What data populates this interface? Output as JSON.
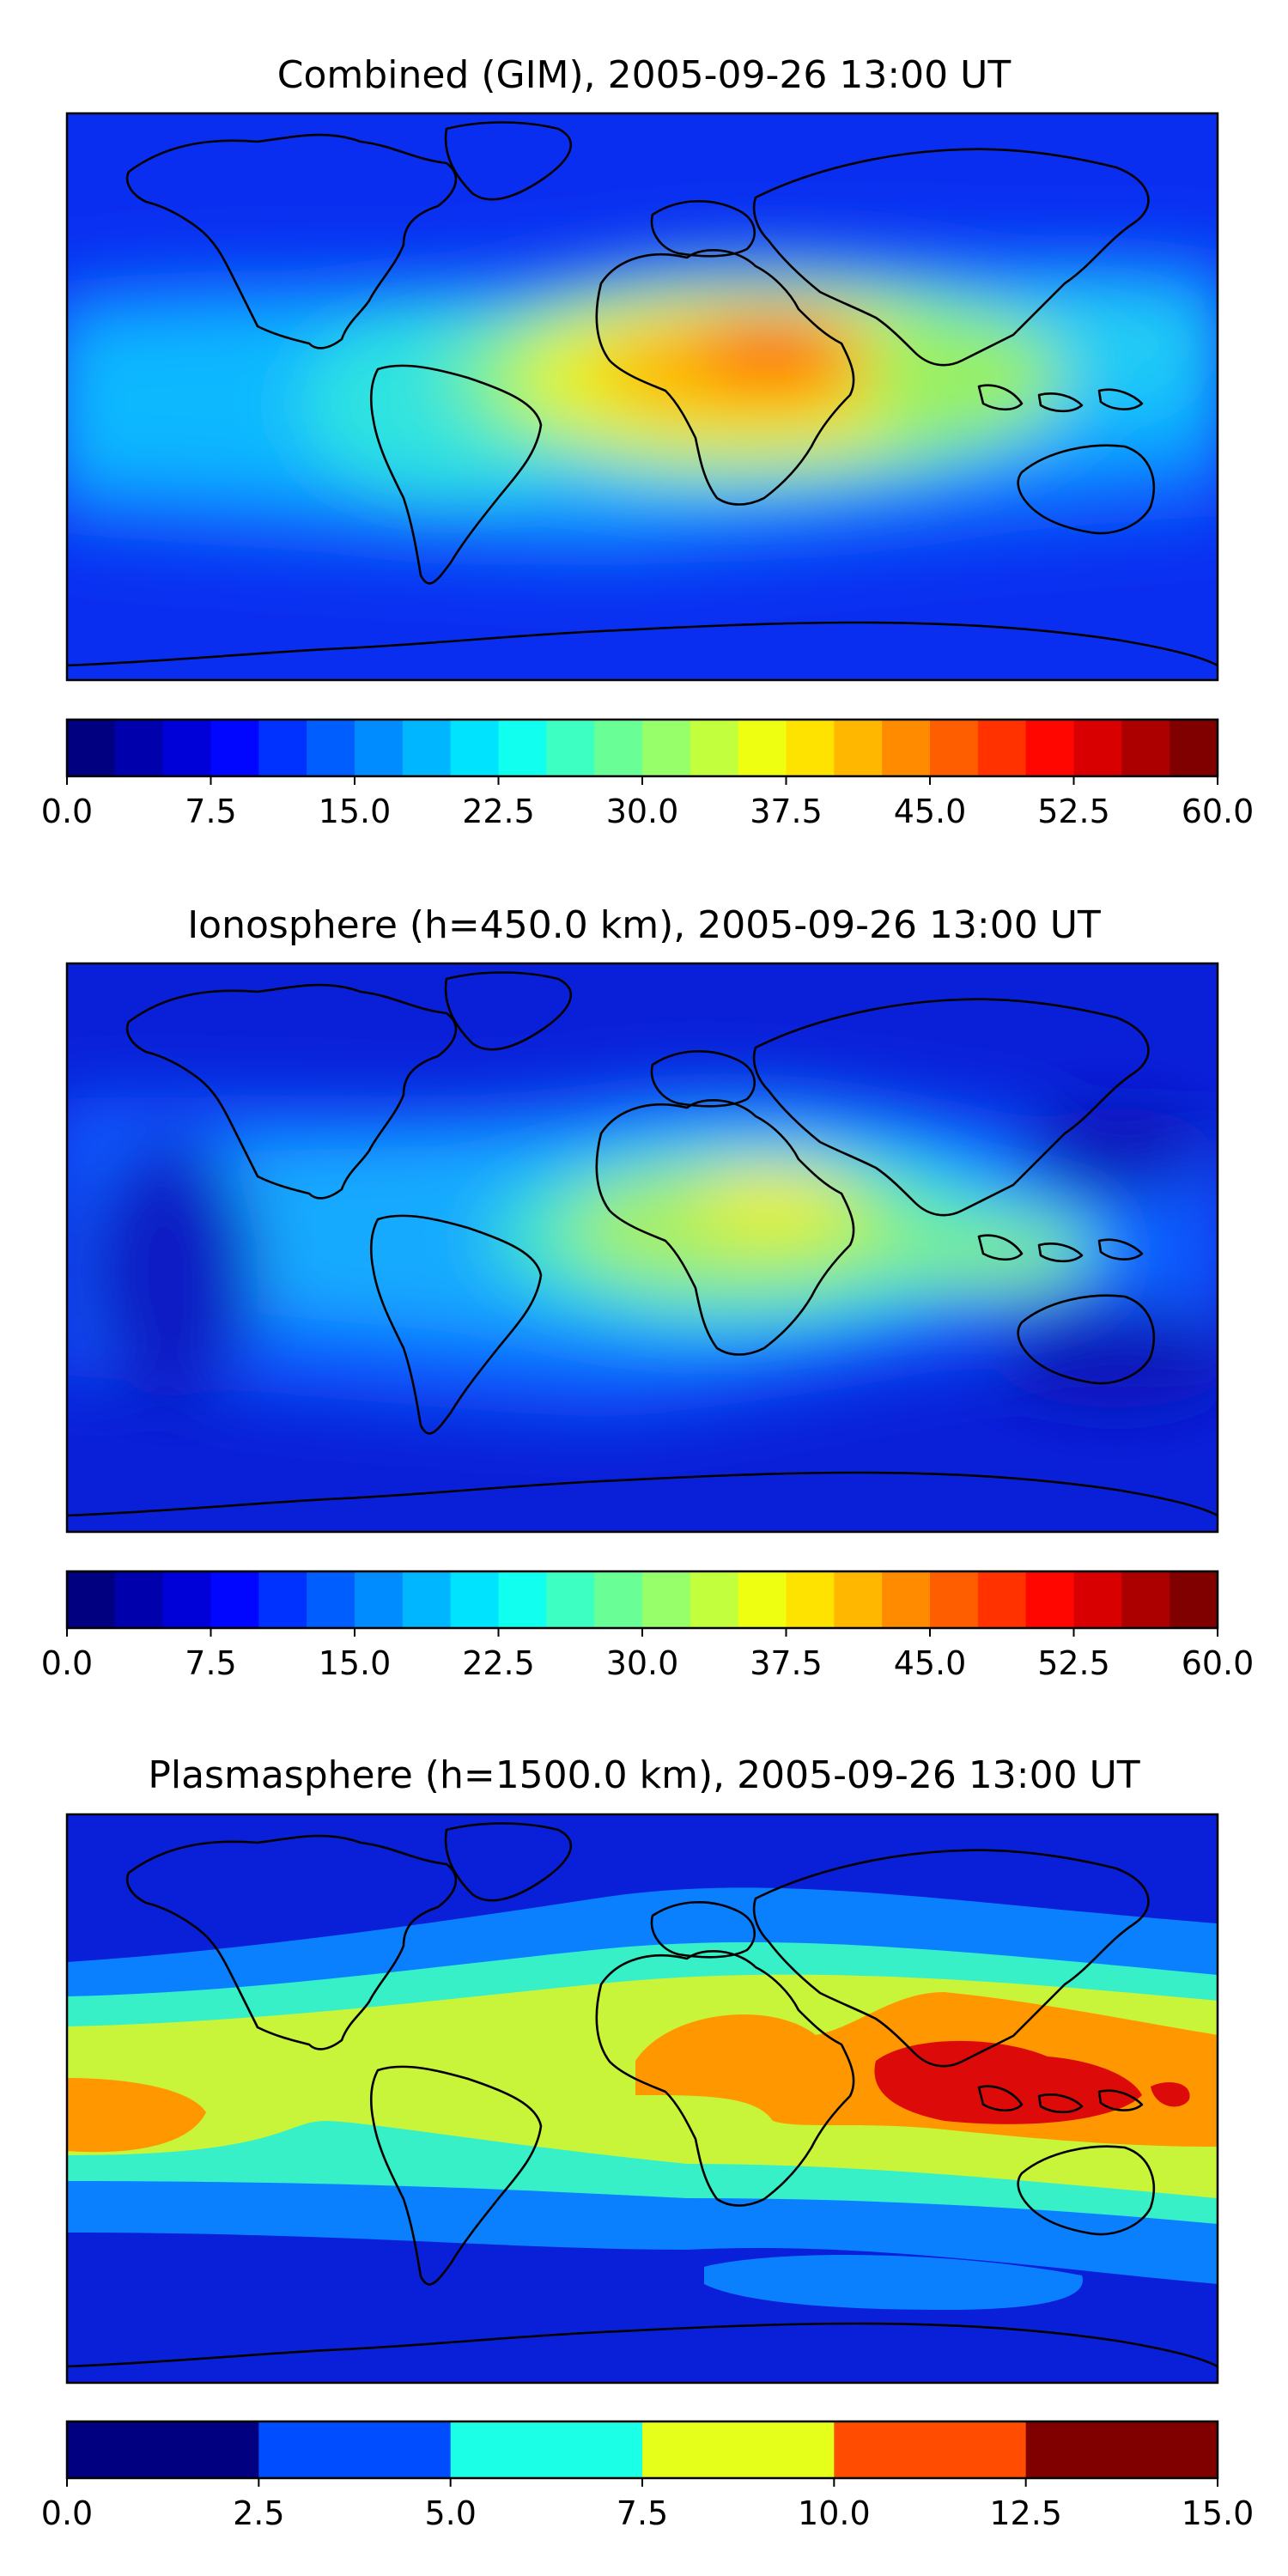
{
  "panels": [
    {
      "title": "Combined (GIM), 2005-09-26 13:00 UT",
      "colorbar": {
        "colormap": "jet",
        "levels": 24,
        "range": [
          0.0,
          60.0
        ],
        "ticks": [
          "0.0",
          "7.5",
          "15.0",
          "22.5",
          "30.0",
          "37.5",
          "45.0",
          "52.5",
          "60.0"
        ]
      }
    },
    {
      "title": "Ionosphere  (h=450.0 km), 2005-09-26 13:00 UT",
      "colorbar": {
        "colormap": "jet",
        "levels": 24,
        "range": [
          0.0,
          60.0
        ],
        "ticks": [
          "0.0",
          "7.5",
          "15.0",
          "22.5",
          "30.0",
          "37.5",
          "45.0",
          "52.5",
          "60.0"
        ]
      }
    },
    {
      "title": "Plasmasphere (h=1500.0 km), 2005-09-26 13:00 UT",
      "colorbar": {
        "colormap": "jet",
        "levels": 6,
        "range": [
          0.0,
          15.0
        ],
        "ticks": [
          "0.0",
          "2.5",
          "5.0",
          "7.5",
          "10.0",
          "12.5",
          "15.0"
        ]
      }
    }
  ]
}
